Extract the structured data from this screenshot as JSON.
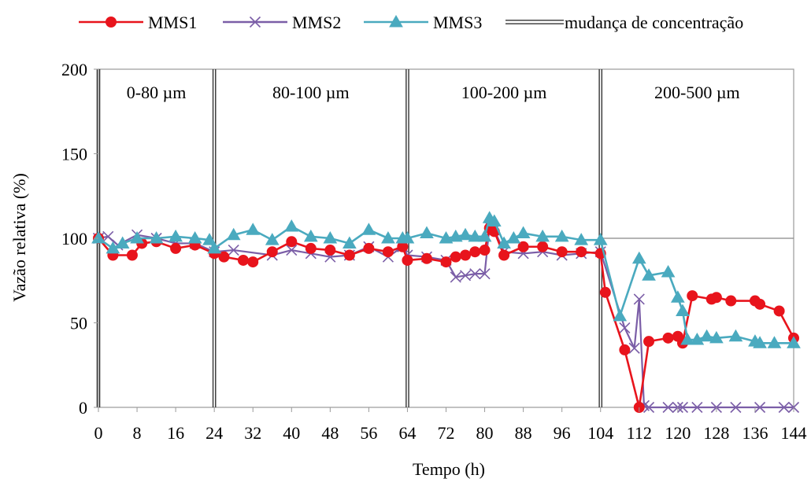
{
  "chart_data": {
    "type": "line",
    "title": "",
    "xlabel": "Tempo (h)",
    "ylabel": "Vazão relativa  (%)",
    "xlim": [
      0,
      144
    ],
    "ylim": [
      0,
      200
    ],
    "x_ticks": [
      "0",
      "8",
      "16",
      "24",
      "32",
      "40",
      "48",
      "56",
      "64",
      "72",
      "80",
      "88",
      "96",
      "104",
      "112",
      "120",
      "128",
      "136",
      "144"
    ],
    "y_ticks": [
      "0",
      "50",
      "100",
      "150",
      "200"
    ],
    "grid": false,
    "reference_line_y": 100,
    "legend_position": "top",
    "regions": [
      {
        "label": "0-80 µm",
        "x_start": 0,
        "x_end": 24
      },
      {
        "label": "80-100 µm",
        "x_start": 24,
        "x_end": 64
      },
      {
        "label": "100-200 µm",
        "x_start": 64,
        "x_end": 104
      },
      {
        "label": "200-500 µm",
        "x_start": 104,
        "x_end": 144
      }
    ],
    "concentration_changes": [
      0,
      24,
      64,
      104
    ],
    "concentration_change_label": "mudança de concentração",
    "series": [
      {
        "name": "MMS1",
        "color": "#e8141c",
        "marker": "circle",
        "x": [
          0,
          3,
          7,
          9,
          12,
          16,
          20,
          24,
          26,
          30,
          32,
          36,
          40,
          44,
          48,
          52,
          56,
          60,
          63,
          64,
          68,
          72,
          74,
          76,
          78,
          80,
          81,
          82,
          84,
          88,
          92,
          96,
          100,
          104,
          105,
          109,
          112,
          114,
          118,
          120,
          121,
          123,
          127,
          128,
          131,
          136,
          137,
          141,
          144
        ],
        "y": [
          100,
          90,
          90,
          97,
          98,
          94,
          96,
          91,
          89,
          87,
          86,
          92,
          98,
          94,
          93,
          90,
          94,
          92,
          95,
          87,
          88,
          86,
          89,
          90,
          92,
          93,
          106,
          104,
          90,
          95,
          95,
          92,
          92,
          91,
          68,
          34,
          0,
          39,
          41,
          42,
          38,
          66,
          64,
          65,
          63,
          63,
          61,
          57,
          41
        ]
      },
      {
        "name": "MMS2",
        "color": "#7b5ea7",
        "marker": "x",
        "x": [
          0,
          2,
          4,
          8,
          12,
          16,
          20,
          24,
          28,
          36,
          40,
          44,
          48,
          52,
          56,
          60,
          63,
          64,
          68,
          72,
          74,
          76,
          78,
          80,
          81,
          82,
          84,
          88,
          92,
          96,
          100,
          104,
          109,
          111,
          112,
          113,
          114,
          118,
          120,
          121,
          124,
          128,
          132,
          137,
          142,
          144
        ],
        "y": [
          100,
          101,
          96,
          102,
          100,
          97,
          97,
          92,
          93,
          90,
          93,
          91,
          89,
          90,
          95,
          89,
          95,
          90,
          89,
          87,
          77,
          78,
          79,
          79,
          107,
          105,
          92,
          91,
          92,
          90,
          91,
          92,
          47,
          35,
          64,
          1,
          0,
          0,
          0,
          0,
          0,
          0,
          0,
          0,
          0,
          0
        ]
      },
      {
        "name": "MMS3",
        "color": "#4aaabf",
        "marker": "triangle",
        "x": [
          0,
          3,
          5,
          8,
          12,
          16,
          20,
          23,
          24,
          28,
          32,
          36,
          40,
          44,
          48,
          52,
          56,
          60,
          63,
          64,
          68,
          72,
          74,
          76,
          78,
          80,
          81,
          82,
          84,
          86,
          88,
          92,
          96,
          100,
          104,
          108,
          112,
          114,
          118,
          120,
          121,
          122,
          124,
          126,
          128,
          132,
          136,
          137,
          140,
          144
        ],
        "y": [
          100,
          94,
          97,
          100,
          100,
          101,
          100,
          99,
          94,
          102,
          105,
          99,
          107,
          101,
          100,
          97,
          105,
          100,
          100,
          100,
          103,
          100,
          101,
          102,
          101,
          101,
          112,
          110,
          97,
          100,
          103,
          101,
          101,
          99,
          99,
          54,
          88,
          78,
          80,
          65,
          57,
          40,
          40,
          42,
          41,
          42,
          39,
          38,
          38,
          38
        ]
      }
    ]
  }
}
